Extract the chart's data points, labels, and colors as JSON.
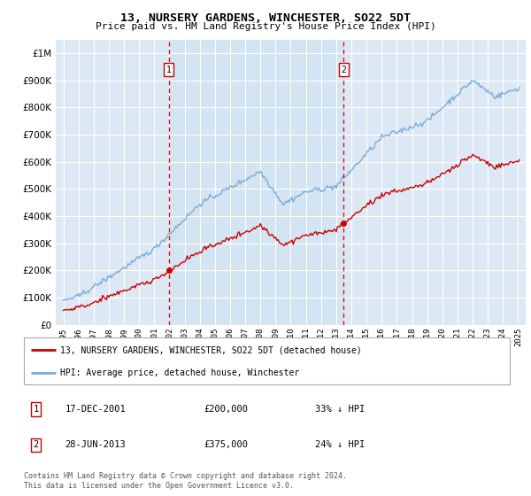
{
  "title": "13, NURSERY GARDENS, WINCHESTER, SO22 5DT",
  "subtitle": "Price paid vs. HM Land Registry's House Price Index (HPI)",
  "legend_property": "13, NURSERY GARDENS, WINCHESTER, SO22 5DT (detached house)",
  "legend_hpi": "HPI: Average price, detached house, Winchester",
  "transaction1": {
    "label": "1",
    "date": "17-DEC-2001",
    "price": 200000,
    "pct": "33%",
    "direction": "↓",
    "year": 2001.96
  },
  "transaction2": {
    "label": "2",
    "date": "28-JUN-2013",
    "price": 375000,
    "pct": "24%",
    "direction": "↓",
    "year": 2013.49
  },
  "ylim": [
    0,
    1050000
  ],
  "yticks": [
    0,
    100000,
    200000,
    300000,
    400000,
    500000,
    600000,
    700000,
    800000,
    900000,
    1000000
  ],
  "xlim": [
    1994.5,
    2025.5
  ],
  "background_color": "#dce9f5",
  "shade_color": "#cce0f0",
  "grid_color": "#ffffff",
  "property_color": "#cc0000",
  "hpi_color": "#7aacda",
  "footnote": "Contains HM Land Registry data © Crown copyright and database right 2024.\nThis data is licensed under the Open Government Licence v3.0."
}
